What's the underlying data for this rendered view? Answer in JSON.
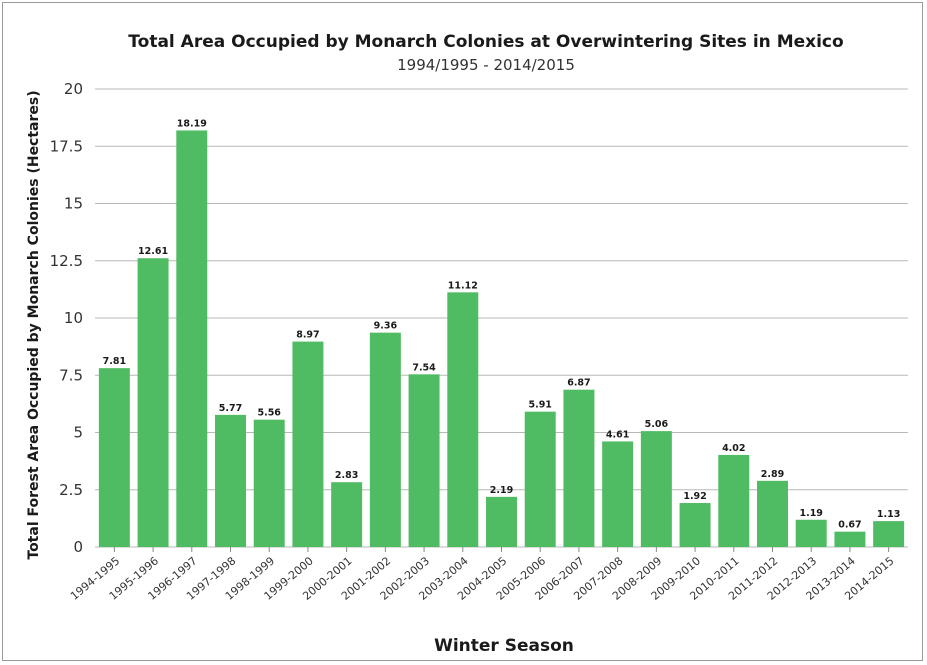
{
  "chart_data": {
    "type": "bar",
    "title": "Total Area Occupied by Monarch Colonies at Overwintering Sites in Mexico",
    "subtitle": "1994/1995 - 2014/2015",
    "xlabel": "Winter Season",
    "ylabel": "Total Forest Area Occupied by Monarch Colonies (Hectares)",
    "ylim": [
      0,
      20
    ],
    "yticks": [
      "0",
      "2.5",
      "5",
      "7.5",
      "10",
      "12.5",
      "15",
      "17.5",
      "20"
    ],
    "grid": true,
    "bar_color": "#4fbb62",
    "categories": [
      "1994-1995",
      "1995-1996",
      "1996-1997",
      "1997-1998",
      "1998-1999",
      "1999-2000",
      "2000-2001",
      "2001-2002",
      "2002-2003",
      "2003-2004",
      "2004-2005",
      "2005-2006",
      "2006-2007",
      "2007-2008",
      "2008-2009",
      "2009-2010",
      "2010-2011",
      "2011-2012",
      "2012-2013",
      "2013-2014",
      "2014-2015"
    ],
    "values": [
      7.81,
      12.61,
      18.19,
      5.77,
      5.56,
      8.97,
      2.83,
      9.36,
      7.54,
      11.12,
      2.19,
      5.91,
      6.87,
      4.61,
      5.06,
      1.92,
      4.02,
      2.89,
      1.19,
      0.67,
      1.13
    ],
    "data_labels": [
      "7.81",
      "12.61",
      "18.19",
      "5.77",
      "5.56",
      "8.97",
      "2.83",
      "9.36",
      "7.54",
      "11.12",
      "2.19",
      "5.91",
      "6.87",
      "4.61",
      "5.06",
      "1.92",
      "4.02",
      "2.89",
      "1.19",
      "0.67",
      "1.13"
    ]
  }
}
